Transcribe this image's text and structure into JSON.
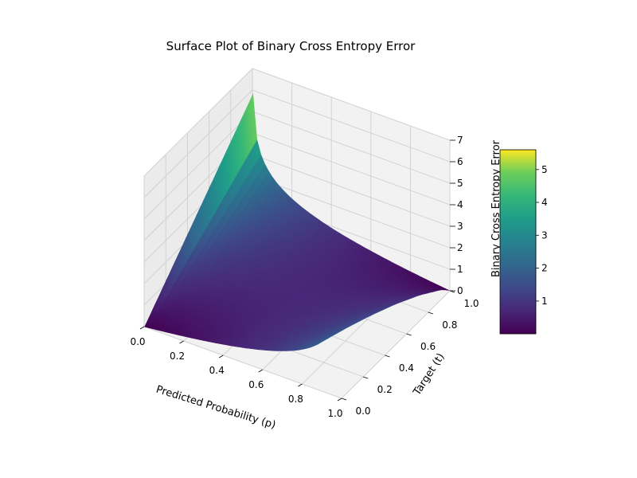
{
  "chart_data": {
    "type": "surface",
    "title": "Surface Plot of Binary Cross Entropy Error",
    "xlabel": "Predicted Probability (p)",
    "ylabel": "Target (t)",
    "zlabel": "Binary Cross Entropy Error",
    "xlim": [
      0,
      1
    ],
    "ylim": [
      0,
      1
    ],
    "zlim": [
      0,
      7
    ],
    "x_ticks": [
      "0.0",
      "0.2",
      "0.4",
      "0.6",
      "0.8",
      "1.0"
    ],
    "y_ticks": [
      "0.0",
      "0.2",
      "0.4",
      "0.6",
      "0.8",
      "1.0"
    ],
    "z_ticks": [
      "0",
      "1",
      "2",
      "3",
      "4",
      "5",
      "6",
      "7"
    ],
    "function": "-(t*log(p) + (1-t)*log(1-p))",
    "p_range": [
      0.003,
      0.997
    ],
    "t_range": [
      0,
      1
    ],
    "grid": true,
    "colormap": "viridis",
    "colorbar": {
      "min": 0.003,
      "max": 5.6,
      "ticks": [
        "1",
        "2",
        "3",
        "4",
        "5"
      ],
      "tick_values": [
        1,
        2,
        3,
        4,
        5
      ]
    }
  }
}
